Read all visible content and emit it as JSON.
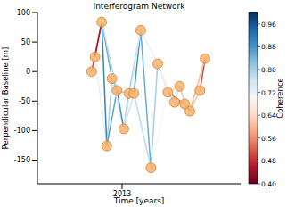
{
  "chart_data": {
    "type": "network",
    "title": "Interferogram Network",
    "x_label": "Time [years]",
    "y_label": "Perpendicular Baseline [m]",
    "x": [
      2012.82,
      2012.84,
      2012.88,
      2012.91,
      2012.94,
      2012.97,
      2013.01,
      2013.04,
      2013.07,
      2013.11,
      2013.17,
      2013.21,
      2013.27,
      2013.31,
      2013.34,
      2013.37,
      2013.4,
      2013.46,
      2013.49
    ],
    "values": [
      0,
      25,
      84,
      -126,
      -12,
      -32,
      -97,
      -37,
      -37,
      70,
      -163,
      13,
      -35,
      -52,
      -25,
      -55,
      -67,
      -32,
      22
    ],
    "color": "#f6b26b",
    "marker": "circle",
    "xlim": [
      2012.5,
      2013.7
    ],
    "xticks": [
      2013
    ],
    "ylim": [
      -190,
      100
    ],
    "yticks": [
      -150,
      -100,
      -50,
      0,
      50,
      100
    ],
    "grid": false,
    "edges": [
      {
        "from": 0,
        "to": 1,
        "coherence": 0.62
      },
      {
        "from": 0,
        "to": 2,
        "coherence": 0.5
      },
      {
        "from": 1,
        "to": 2,
        "coherence": 0.45
      },
      {
        "from": 1,
        "to": 3,
        "coherence": 0.72
      },
      {
        "from": 2,
        "to": 3,
        "coherence": 0.9
      },
      {
        "from": 2,
        "to": 4,
        "coherence": 0.85
      },
      {
        "from": 2,
        "to": 5,
        "coherence": 0.78
      },
      {
        "from": 3,
        "to": 4,
        "coherence": 0.8
      },
      {
        "from": 3,
        "to": 5,
        "coherence": 0.86
      },
      {
        "from": 4,
        "to": 5,
        "coherence": 0.82
      },
      {
        "from": 4,
        "to": 6,
        "coherence": 0.75
      },
      {
        "from": 5,
        "to": 6,
        "coherence": 0.88
      },
      {
        "from": 5,
        "to": 7,
        "coherence": 0.8
      },
      {
        "from": 6,
        "to": 7,
        "coherence": 0.84
      },
      {
        "from": 6,
        "to": 8,
        "coherence": 0.76
      },
      {
        "from": 7,
        "to": 8,
        "coherence": 0.9
      },
      {
        "from": 7,
        "to": 9,
        "coherence": 0.82
      },
      {
        "from": 8,
        "to": 9,
        "coherence": 0.88
      },
      {
        "from": 6,
        "to": 9,
        "coherence": 0.74
      },
      {
        "from": 9,
        "to": 10,
        "coherence": 0.85
      },
      {
        "from": 8,
        "to": 10,
        "coherence": 0.78
      },
      {
        "from": 10,
        "to": 11,
        "coherence": 0.8
      },
      {
        "from": 9,
        "to": 11,
        "coherence": 0.72
      },
      {
        "from": 11,
        "to": 12,
        "coherence": 0.74
      },
      {
        "from": 10,
        "to": 12,
        "coherence": 0.7
      },
      {
        "from": 11,
        "to": 13,
        "coherence": 0.68
      },
      {
        "from": 12,
        "to": 13,
        "coherence": 0.78
      },
      {
        "from": 12,
        "to": 14,
        "coherence": 0.74
      },
      {
        "from": 12,
        "to": 15,
        "coherence": 0.55
      },
      {
        "from": 13,
        "to": 14,
        "coherence": 0.76
      },
      {
        "from": 14,
        "to": 15,
        "coherence": 0.62
      },
      {
        "from": 13,
        "to": 15,
        "coherence": 0.82
      },
      {
        "from": 14,
        "to": 16,
        "coherence": 0.76
      },
      {
        "from": 15,
        "to": 16,
        "coherence": 0.86
      },
      {
        "from": 15,
        "to": 17,
        "coherence": 0.7
      },
      {
        "from": 16,
        "to": 17,
        "coherence": 0.62
      },
      {
        "from": 17,
        "to": 18,
        "coherence": 0.5
      },
      {
        "from": 16,
        "to": 18,
        "coherence": 0.6
      }
    ],
    "colorbar": {
      "label": "Coherence",
      "range": [
        0.4,
        1.0
      ],
      "ticks": [
        {
          "value": 0.4,
          "label": "0.40"
        },
        {
          "value": 0.48,
          "label": "0.48"
        },
        {
          "value": 0.56,
          "label": "0.56"
        },
        {
          "value": 0.64,
          "label": "0.64"
        },
        {
          "value": 0.72,
          "label": "0.72"
        },
        {
          "value": 0.8,
          "label": "0.80"
        },
        {
          "value": 0.88,
          "label": "0.88"
        },
        {
          "value": 0.96,
          "label": "0.96"
        }
      ]
    }
  }
}
